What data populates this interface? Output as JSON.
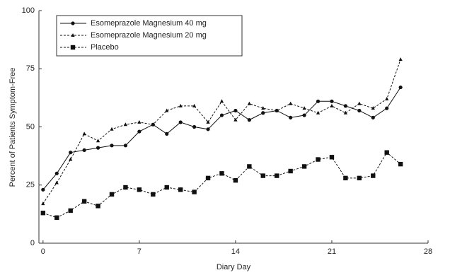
{
  "chart_data": {
    "type": "line",
    "x_label": "Diary Day",
    "y_label": "Percent of Patients Symptom-Free",
    "x": [
      0,
      1,
      2,
      3,
      4,
      5,
      6,
      7,
      8,
      9,
      10,
      11,
      12,
      13,
      14,
      15,
      16,
      17,
      18,
      19,
      20,
      21,
      22,
      23,
      24,
      25,
      26
    ],
    "series": [
      {
        "name": "Esomeprazole Magnesium 40 mg",
        "color": "#111111",
        "linestyle": "solid",
        "marker": "circle",
        "values": [
          23,
          30,
          39,
          40,
          41,
          42,
          42,
          48,
          51,
          47,
          52,
          50,
          49,
          55,
          57,
          53,
          56,
          57,
          54,
          55,
          61,
          61,
          59,
          57,
          54,
          58,
          67
        ]
      },
      {
        "name": "Esomeprazole Magnesium 20 mg",
        "color": "#111111",
        "linestyle": "dashed",
        "marker": "triangle",
        "values": [
          17,
          26,
          36,
          47,
          44,
          49,
          51,
          52,
          51,
          57,
          59,
          59,
          52,
          61,
          53,
          60,
          58,
          57,
          60,
          58,
          56,
          59,
          56,
          60,
          58,
          62,
          79
        ]
      },
      {
        "name": "Placebo",
        "color": "#111111",
        "linestyle": "dashed",
        "marker": "square",
        "values": [
          13,
          11,
          14,
          18,
          16,
          21,
          24,
          23,
          21,
          24,
          23,
          22,
          28,
          30,
          27,
          33,
          29,
          29,
          31,
          33,
          36,
          37,
          28,
          28,
          29,
          39,
          34
        ]
      }
    ],
    "xlim": [
      -0.3,
      28
    ],
    "ylim": [
      0,
      100
    ],
    "xticks": [
      0,
      7,
      14,
      21,
      28
    ],
    "yticks": [
      0,
      25,
      50,
      75,
      100
    ],
    "grid": false,
    "legend": "upper left"
  }
}
